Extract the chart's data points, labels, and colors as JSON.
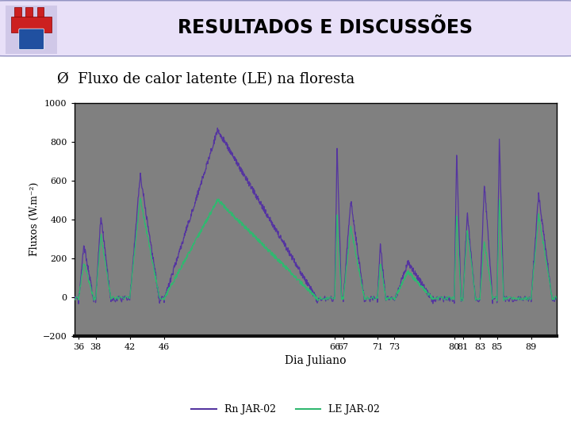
{
  "title_header": "RESULTADOS E DISCUSSÕES",
  "subtitle": "Ø  Fluxo de calor latente (LE) na floresta",
  "xlabel": "Dia Juliano",
  "ylabel": "Fluxos (W.m⁻²)",
  "ylim": [
    -200,
    1000
  ],
  "yticks": [
    -200,
    0,
    200,
    400,
    600,
    800,
    1000
  ],
  "xtick_labels": [
    "36",
    "38",
    "42",
    "46",
    "66",
    "67",
    "71",
    "73",
    "80",
    "81",
    "83",
    "85",
    "89"
  ],
  "header_bg": "#cbbde8",
  "header_bg2": "#e8e0f8",
  "plot_bg": "#808080",
  "line1_color": "#5535a0",
  "line2_color": "#30b870",
  "line1_label": "Rn JAR-02",
  "line2_label": "LE JAR-02",
  "line_width": 0.9,
  "fig_bg": "#ffffff",
  "bottom_bar_color": "#202020"
}
